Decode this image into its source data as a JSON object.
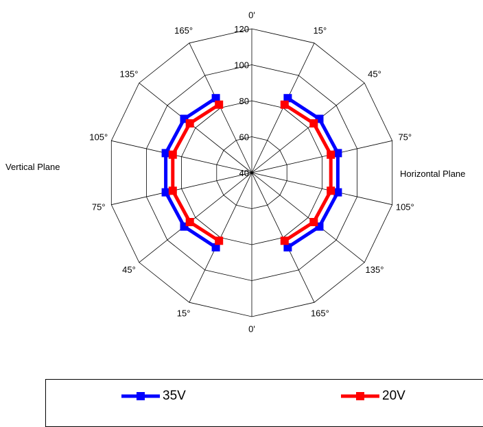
{
  "chart_data": {
    "type": "radar",
    "grid": true,
    "radial_axis": {
      "min": 40,
      "max": 120,
      "ticks": [
        "40",
        "60",
        "80",
        "100",
        "120"
      ]
    },
    "angle_labels": [
      "0'",
      "15°",
      "45°",
      "75°",
      "105°",
      "135°",
      "165°",
      "0'",
      "15°",
      "45°",
      "75°",
      "105°",
      "135°",
      "165°"
    ],
    "left_label": "Vertical Plane",
    "right_label": "Horizontal Plane",
    "legend_placement": "bottom",
    "series": [
      {
        "name": "35V",
        "color": "#0000ff",
        "values": [
          null,
          86,
          88,
          89,
          89,
          88,
          86,
          null,
          86,
          88,
          89,
          89,
          88,
          86
        ]
      },
      {
        "name": "20V",
        "color": "#ff0000",
        "values": [
          null,
          82,
          84,
          85,
          85,
          84,
          82,
          null,
          82,
          84,
          85,
          85,
          84,
          82
        ]
      }
    ]
  }
}
